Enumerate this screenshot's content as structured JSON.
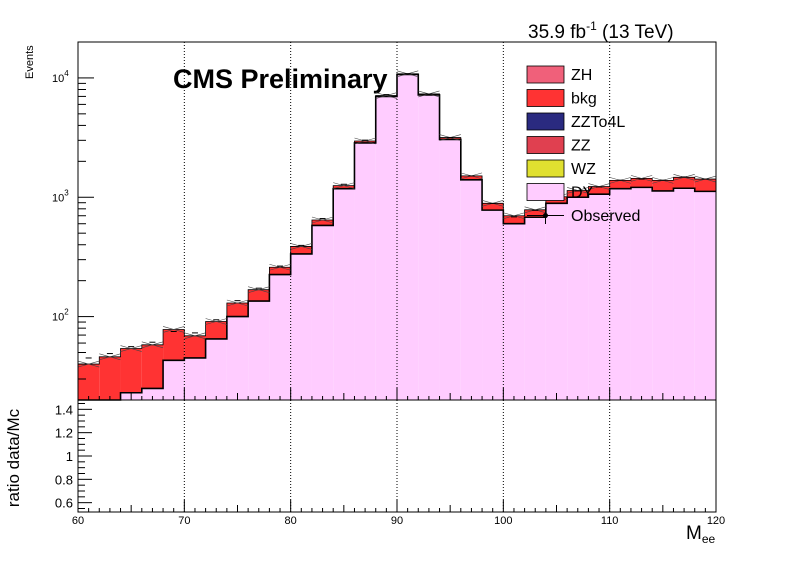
{
  "header": {
    "lumi_value": "35.9 fb",
    "lumi_exp": "-1",
    "energy": " (13 TeV)",
    "cms": "CMS Preliminary"
  },
  "chart_data": [
    {
      "type": "bar",
      "stacked": true,
      "x_label": "M",
      "x_label_sub": "ee",
      "y_label": "Events",
      "x_range": [
        60,
        120
      ],
      "y_range": [
        20,
        20000
      ],
      "y_scale": "log",
      "x_ticks": [
        "60",
        "70",
        "80",
        "90",
        "100",
        "110",
        "120"
      ],
      "y_ticks": [
        {
          "base": "10",
          "exp": "2",
          "value": 100
        },
        {
          "base": "10",
          "exp": "3",
          "value": 1000
        },
        {
          "base": "10",
          "exp": "4",
          "value": 10000
        }
      ],
      "grid": "vertical dotted",
      "legend_position": "top-right",
      "bin_edges": [
        60,
        62,
        64,
        66,
        68,
        70,
        72,
        74,
        76,
        78,
        80,
        82,
        84,
        86,
        88,
        90,
        92,
        94,
        96,
        98,
        100,
        102,
        104,
        106,
        108,
        110,
        112,
        114,
        116,
        118,
        120
      ],
      "series": [
        {
          "name": "ZH",
          "color": "#f0607a",
          "values": []
        },
        {
          "name": "bkg",
          "color": "#ff3333",
          "values": [
            22,
            26,
            31,
            33,
            35,
            24,
            26,
            30,
            33,
            34,
            52,
            65,
            72,
            112,
            115,
            125,
            140,
            115,
            110,
            110,
            100,
            105,
            120,
            140,
            170,
            205,
            230,
            255,
            280,
            300
          ]
        },
        {
          "name": "ZZTo4L",
          "color": "#2a2a80",
          "values": []
        },
        {
          "name": "ZZ",
          "color": "#e04050",
          "values": []
        },
        {
          "name": "WZ",
          "color": "#e0e030",
          "values": []
        },
        {
          "name": "DY",
          "color": "#ffccff",
          "values": [
            18,
            20,
            23,
            25,
            43,
            45,
            65,
            100,
            135,
            225,
            335,
            580,
            1180,
            2850,
            7000,
            10700,
            7200,
            3050,
            1400,
            780,
            600,
            680,
            890,
            1000,
            1060,
            1180,
            1210,
            1130,
            1190,
            1120
          ]
        },
        {
          "name": "Observed",
          "color": "#000000",
          "values": [
            45,
            49,
            56,
            61,
            75,
            73,
            94,
            136,
            173,
            265,
            395,
            663,
            1285,
            3010,
            7250,
            10850,
            7320,
            3170,
            1510,
            887,
            685,
            777,
            980,
            1130,
            1220,
            1390,
            1420,
            1390,
            1480,
            1420
          ]
        }
      ]
    },
    {
      "type": "line",
      "y_label": "ratio data/Mc",
      "x_range": [
        60,
        120
      ],
      "y_range": [
        0.52,
        1.48
      ],
      "y_ticks": [
        "0.6",
        "0.8",
        "1",
        "1.2",
        "1.4"
      ],
      "grid": "vertical dotted",
      "series": []
    }
  ]
}
